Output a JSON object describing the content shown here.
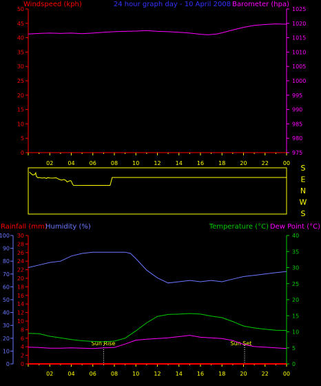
{
  "colors": {
    "background": "#000000",
    "frame": "#ffff00",
    "wind": "#ff0000",
    "barometer": "#ff00ff",
    "direction": "#ffff00",
    "rain": "#ff0000",
    "humidity": "#6a78ff",
    "temperature": "#00cc00",
    "dew": "#ff00ff",
    "sun_marker": "#ffffff"
  },
  "header": {
    "wind_label": "Windspeed (kph)",
    "center_title": "24 hour graph day - 10 April 2008",
    "baro_label": "Barometer (hpa)"
  },
  "lower_header": {
    "rain_label": "Rainfall (mm)",
    "humidity_label": "Humidity (%)",
    "temp_label": "Temperature (°C)",
    "dew_label": "Dew Point (°C)"
  },
  "x_tick_labels": [
    "02",
    "04",
    "06",
    "08",
    "10",
    "12",
    "14",
    "16",
    "18",
    "20",
    "22",
    "00"
  ],
  "direction_labels": [
    "S",
    "E",
    "N",
    "W",
    "S"
  ],
  "sun": {
    "rise_label": "Sun Rise",
    "set_label": "Sun Set",
    "rise_hour": 7.0,
    "set_hour": 20.1
  },
  "chart_data": [
    {
      "type": "line",
      "title": "24 hour graph day - 10 April 2008",
      "x_unit": "hour",
      "xlim": [
        0,
        24
      ],
      "y_left": {
        "label": "Windspeed (kph)",
        "lim": [
          0,
          50
        ],
        "ticks": [
          "0",
          "5",
          "10",
          "15",
          "20",
          "25",
          "30",
          "35",
          "40",
          "45",
          "50"
        ]
      },
      "y_right": {
        "label": "Barometer (hpa)",
        "lim": [
          975,
          1025
        ],
        "ticks": [
          "975",
          "980",
          "985",
          "990",
          "995",
          "1000",
          "1005",
          "1010",
          "1015",
          "1020",
          "1025"
        ]
      },
      "series": [
        {
          "name": "Windspeed (kph)",
          "axis": "left",
          "x": [
            0,
            24
          ],
          "y": [
            0,
            0
          ]
        },
        {
          "name": "Barometer (hpa)",
          "axis": "right",
          "x": [
            0,
            1,
            2,
            3,
            4,
            5,
            6,
            7,
            8,
            9,
            10,
            11,
            12,
            13,
            14,
            15,
            16,
            16.7,
            17.5,
            18,
            19,
            20,
            21,
            22,
            23,
            24
          ],
          "y": [
            1016.3,
            1016.5,
            1016.6,
            1016.5,
            1016.6,
            1016.4,
            1016.6,
            1016.9,
            1017.1,
            1017.2,
            1017.3,
            1017.5,
            1017.2,
            1017.1,
            1016.9,
            1016.6,
            1016.2,
            1016.0,
            1016.3,
            1016.7,
            1017.7,
            1018.6,
            1019.3,
            1019.6,
            1019.8,
            1019.7
          ]
        }
      ]
    },
    {
      "type": "line",
      "title": "",
      "x_unit": "hour",
      "xlim": [
        0,
        24
      ],
      "y_axis": {
        "labels": [
          "S",
          "E",
          "N",
          "W",
          "S"
        ],
        "lim": [
          0,
          360
        ]
      },
      "series": [
        {
          "name": "",
          "x": [
            0.1,
            0.4,
            0.6,
            0.7,
            0.75,
            0.9,
            1.0,
            1.3,
            1.5,
            1.7,
            1.8,
            2.0,
            2.3,
            2.6,
            2.9,
            3.1,
            3.3,
            3.5,
            3.6,
            3.9,
            4.0,
            4.1,
            4.2,
            7.6,
            7.7,
            7.8,
            24
          ],
          "y": [
            18,
            43,
            40,
            25,
            55,
            68,
            65,
            70,
            67,
            73,
            66,
            69,
            70,
            68,
            82,
            88,
            82,
            90,
            103,
            92,
            96,
            120,
            132,
            133,
            100,
            65,
            65
          ]
        }
      ]
    },
    {
      "type": "line",
      "title": "",
      "x_unit": "hour",
      "xlim": [
        0,
        24
      ],
      "y_left_outer": {
        "label": "Humidity (%)",
        "lim": [
          0,
          100
        ],
        "ticks": [
          "0",
          "10",
          "20",
          "30",
          "40",
          "50",
          "60",
          "70",
          "80",
          "90",
          "100"
        ]
      },
      "y_left_inner": {
        "label": "Rainfall (mm)",
        "lim": [
          0,
          30
        ],
        "ticks": [
          "0",
          "2",
          "4",
          "6",
          "8",
          "10",
          "12",
          "14",
          "16",
          "18",
          "20",
          "22",
          "24",
          "26",
          "28",
          "30"
        ]
      },
      "y_right": {
        "label": "Temperature (°C)",
        "lim": [
          0,
          40
        ],
        "ticks": [
          "0",
          "5",
          "10",
          "15",
          "20",
          "25",
          "30",
          "35",
          "40"
        ]
      },
      "series": [
        {
          "name": "Rainfall (mm)",
          "axis": "left_inner",
          "x": [
            0,
            24
          ],
          "y": [
            0,
            0
          ]
        },
        {
          "name": "Humidity (%)",
          "axis": "left_outer",
          "x": [
            0,
            1,
            2,
            3,
            4,
            5,
            6,
            7,
            8,
            9,
            9.5,
            10,
            11,
            12,
            13,
            14,
            15,
            16,
            17,
            18,
            19,
            20,
            21,
            22,
            23,
            24
          ],
          "y": [
            75,
            77,
            79,
            80,
            84,
            86,
            87,
            87,
            87,
            87,
            86,
            82,
            73,
            67,
            63,
            64,
            65,
            64,
            65,
            64,
            66,
            68,
            69,
            70,
            71,
            72
          ]
        },
        {
          "name": "Temperature (°C)",
          "axis": "right",
          "x": [
            0,
            1,
            2,
            3,
            4,
            5,
            6,
            7,
            8,
            9,
            10,
            11,
            12,
            13,
            14,
            15,
            16,
            17,
            18,
            19,
            20,
            21,
            22,
            23,
            24
          ],
          "y": [
            9.5,
            9.4,
            8.6,
            8.1,
            7.6,
            7.2,
            7.0,
            6.9,
            7.1,
            8.0,
            10.3,
            12.8,
            14.8,
            15.4,
            15.5,
            15.7,
            15.5,
            14.9,
            14.4,
            13.2,
            11.8,
            11.2,
            10.8,
            10.5,
            10.4
          ]
        },
        {
          "name": "Dew Point (°C)",
          "axis": "right",
          "x": [
            0,
            1,
            2,
            3,
            4,
            5,
            6,
            7,
            8,
            9,
            10,
            11,
            12,
            13,
            14,
            15,
            16,
            17,
            18,
            19,
            20,
            21,
            22,
            23,
            24
          ],
          "y": [
            5.2,
            5.1,
            4.9,
            4.9,
            5.0,
            4.9,
            4.8,
            5.0,
            5.1,
            6.2,
            7.4,
            7.7,
            7.9,
            8.1,
            8.5,
            8.9,
            8.3,
            8.1,
            7.9,
            7.3,
            6.1,
            5.4,
            5.2,
            5.0,
            4.8
          ]
        }
      ]
    }
  ]
}
